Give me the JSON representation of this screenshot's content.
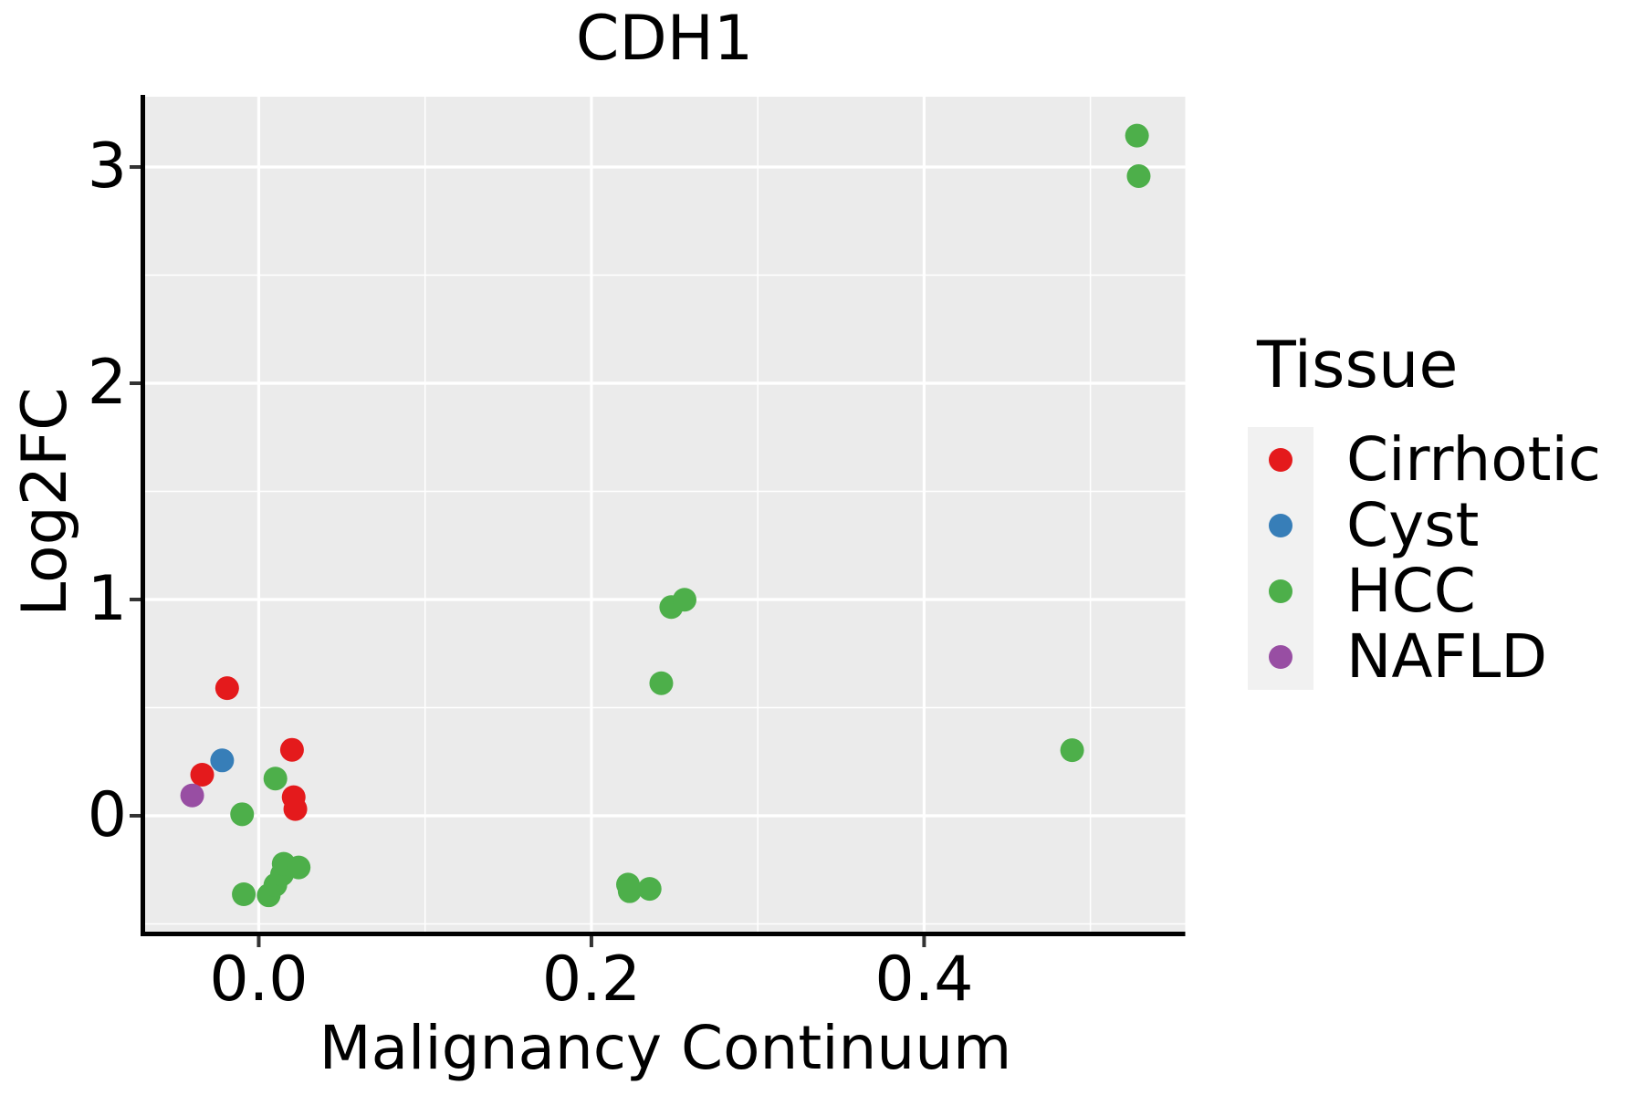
{
  "title": "CDH1",
  "axes": {
    "x": {
      "label": "Malignancy Continuum",
      "ticks": [
        0.0,
        0.2,
        0.4
      ],
      "tick_labels": [
        "0.0",
        "0.2",
        "0.4"
      ],
      "minor_ticks": [
        0.1,
        0.3,
        0.5
      ]
    },
    "y": {
      "label": "Log2FC",
      "ticks": [
        0,
        1,
        2,
        3
      ],
      "tick_labels": [
        "0",
        "1",
        "2",
        "3"
      ],
      "minor_ticks": [
        -0.5,
        0.5,
        1.5,
        2.5
      ]
    }
  },
  "legend": {
    "title": "Tissue",
    "items": [
      {
        "label": "Cirrhotic",
        "color": "#E41A1C"
      },
      {
        "label": "Cyst",
        "color": "#377EB8"
      },
      {
        "label": "HCC",
        "color": "#4DAF4A"
      },
      {
        "label": "NAFLD",
        "color": "#984EA3"
      }
    ]
  },
  "colors": {
    "panel_background": "#EBEBEB",
    "gridline": "#FFFFFF",
    "axis_line": "#000000",
    "tick_mark": "#333333",
    "legend_key_background": "#F1F1F1",
    "text": "#000000"
  },
  "chart_data": {
    "type": "scatter",
    "title": "CDH1",
    "xlabel": "Malignancy Continuum",
    "ylabel": "Log2FC",
    "xlim": [
      -0.0683,
      0.557
    ],
    "ylim": [
      -0.536,
      3.325
    ],
    "grid": "on",
    "legend_position": "right",
    "series": [
      {
        "name": "Cirrhotic",
        "color": "#E41A1C",
        "points": [
          [
            -0.019,
            0.59
          ],
          [
            -0.034,
            0.19
          ],
          [
            0.02,
            0.305
          ],
          [
            0.021,
            0.086
          ],
          [
            0.022,
            0.031
          ]
        ]
      },
      {
        "name": "Cyst",
        "color": "#377EB8",
        "points": [
          [
            -0.022,
            0.256
          ]
        ]
      },
      {
        "name": "HCC",
        "color": "#4DAF4A",
        "points": [
          [
            -0.01,
            0.007
          ],
          [
            0.01,
            0.172
          ],
          [
            -0.009,
            -0.363
          ],
          [
            0.006,
            -0.368
          ],
          [
            0.01,
            -0.32
          ],
          [
            0.014,
            -0.271
          ],
          [
            0.015,
            -0.222
          ],
          [
            0.024,
            -0.239
          ],
          [
            0.222,
            -0.318
          ],
          [
            0.223,
            -0.349
          ],
          [
            0.235,
            -0.338
          ],
          [
            0.242,
            0.613
          ],
          [
            0.248,
            0.965
          ],
          [
            0.256,
            0.999
          ],
          [
            0.489,
            0.303
          ],
          [
            0.528,
            3.145
          ],
          [
            0.529,
            2.958
          ]
        ]
      },
      {
        "name": "NAFLD",
        "color": "#984EA3",
        "points": [
          [
            -0.04,
            0.094
          ]
        ]
      }
    ]
  }
}
